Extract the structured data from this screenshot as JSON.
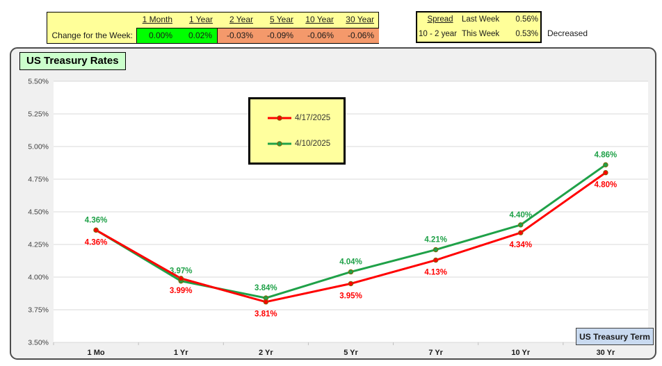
{
  "change_table": {
    "row_label": "Change for the Week:",
    "columns": [
      "1 Month",
      "1 Year",
      "2 Year",
      "5 Year",
      "10 Year",
      "30 Year"
    ],
    "values": [
      "0.00%",
      "0.02%",
      "-0.03%",
      "-0.09%",
      "-0.06%",
      "-0.06%"
    ],
    "value_colors": [
      "#00FF00",
      "#00FF00",
      "#F4996B",
      "#F4996B",
      "#F4996B",
      "#F4996B"
    ]
  },
  "spread_table": {
    "rows": [
      {
        "label": "Spread",
        "period": "Last Week",
        "value": "0.56%"
      },
      {
        "label": "10 - 2 year",
        "period": "This Week",
        "value": "0.53%"
      }
    ],
    "note": "Decreased"
  },
  "chart": {
    "title": "US Treasury Rates",
    "term_button_label": "US Treasury Term"
  },
  "chart_data": {
    "type": "line",
    "title": "US Treasury Rates",
    "categories": [
      "1 Mo",
      "1 Yr",
      "2 Yr",
      "5 Yr",
      "7 Yr",
      "10 Yr",
      "30 Yr"
    ],
    "series": [
      {
        "name": "4/17/2025",
        "color": "#FF0000",
        "label_position": "below",
        "values": [
          4.36,
          3.99,
          3.81,
          3.95,
          4.13,
          4.34,
          4.8
        ]
      },
      {
        "name": "4/10/2025",
        "color": "#1FA148",
        "label_position": "above",
        "values": [
          4.36,
          3.97,
          3.84,
          4.04,
          4.21,
          4.4,
          4.86
        ]
      }
    ],
    "ylim": [
      3.5,
      5.5
    ],
    "ytick_step": 0.25,
    "tick_format": "0.00%",
    "xlabel": "US Treasury Term",
    "grid": true,
    "legend_position": "inside-top-center",
    "data_labels": true
  }
}
